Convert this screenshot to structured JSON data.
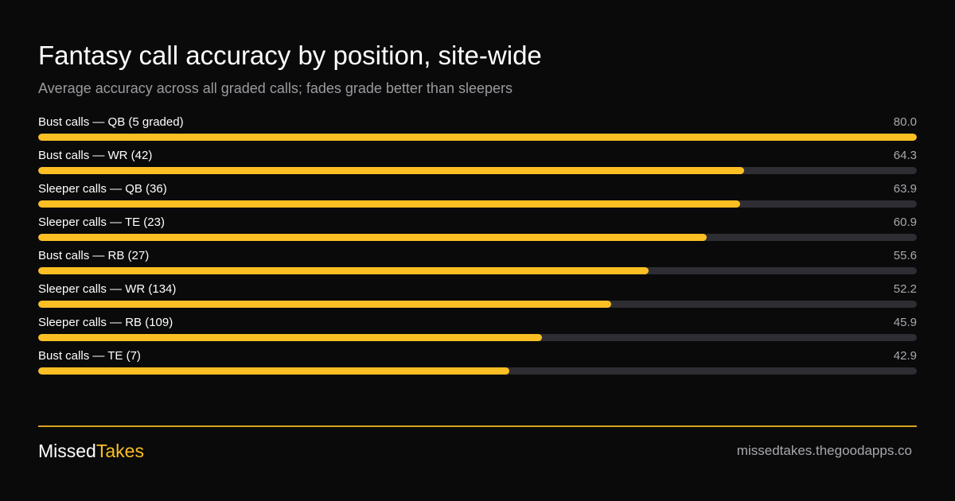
{
  "chart_data": {
    "type": "bar",
    "orientation": "horizontal",
    "title": "Fantasy call accuracy by position, site-wide",
    "subtitle": "Average accuracy across all graded calls; fades grade better than sleepers",
    "categories": [
      "Bust calls — QB (5 graded)",
      "Bust calls — WR (42)",
      "Sleeper calls — QB (36)",
      "Sleeper calls — TE (23)",
      "Bust calls — RB (27)",
      "Sleeper calls — WR (134)",
      "Sleeper calls — RB (109)",
      "Bust calls — TE (7)"
    ],
    "values": [
      80.0,
      64.3,
      63.9,
      60.9,
      55.6,
      52.2,
      45.9,
      42.9
    ],
    "value_labels": [
      "80.0",
      "64.3",
      "63.9",
      "60.9",
      "55.6",
      "52.2",
      "45.9",
      "42.9"
    ],
    "xlim": [
      0,
      80
    ],
    "grid": false,
    "colors": {
      "bar": "#fbbf24",
      "track": "#2e2d33",
      "background": "#0a0a0a"
    }
  },
  "footer": {
    "brand_part1": "Missed",
    "brand_part2": "Takes",
    "site": "missedtakes.thegoodapps.co"
  }
}
